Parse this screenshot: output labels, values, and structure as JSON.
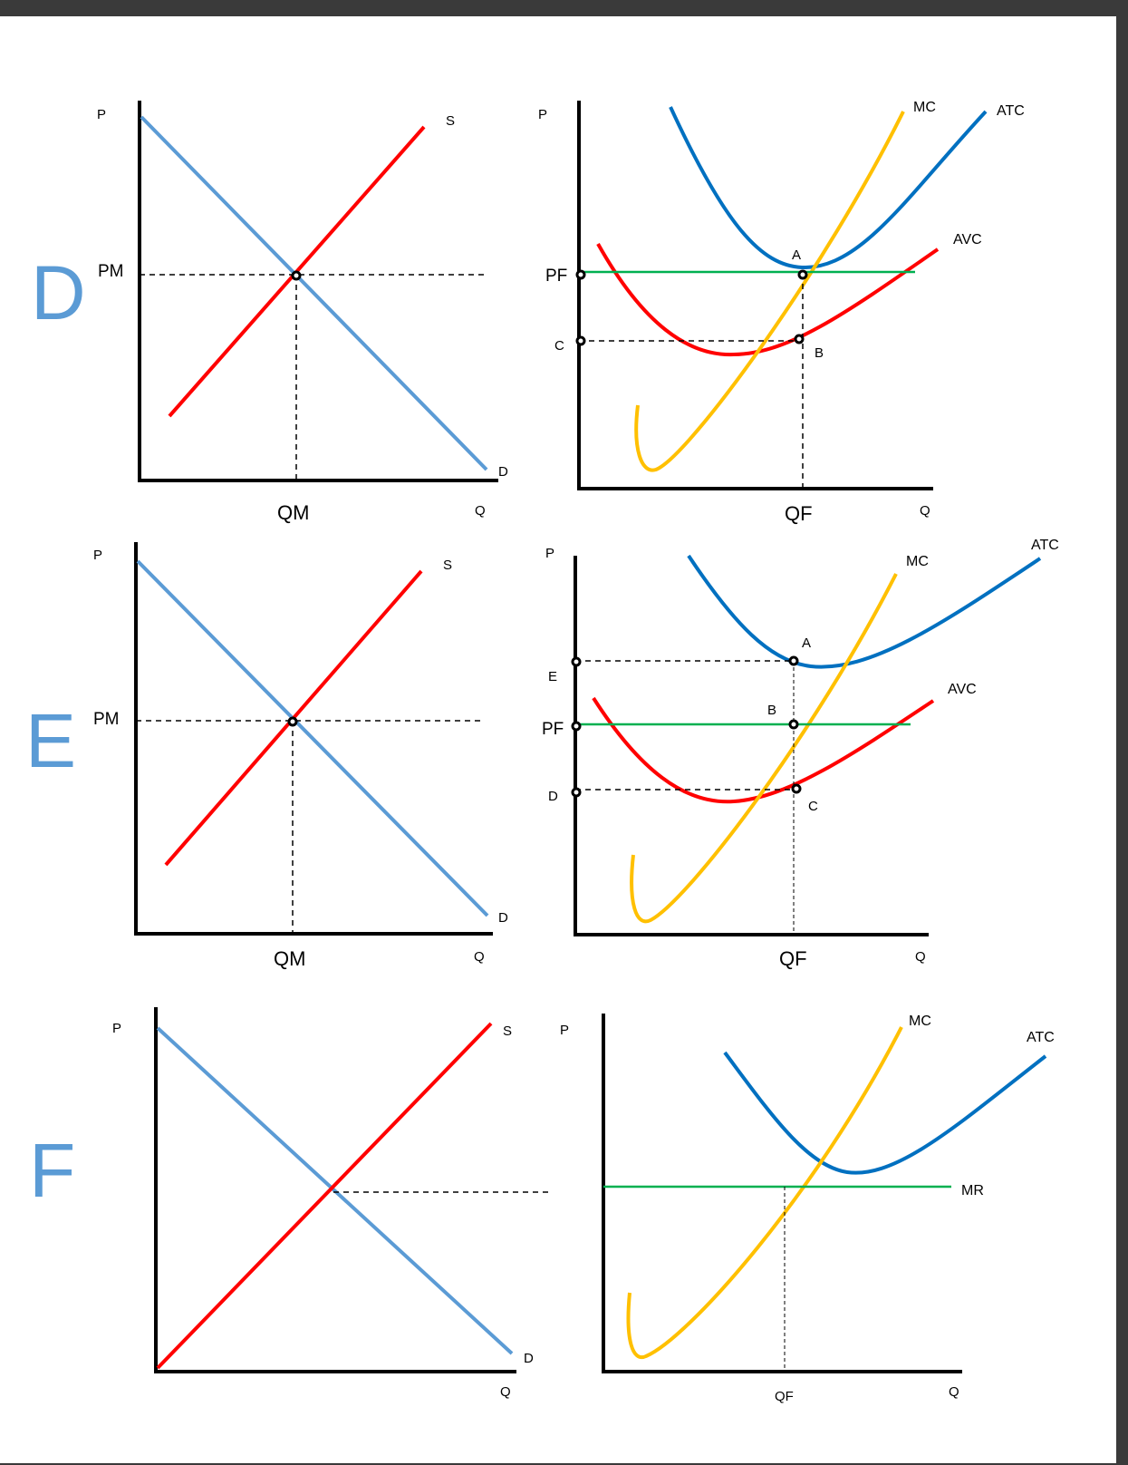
{
  "colors": {
    "demand": "#5b9bd5",
    "supply": "#ff0000",
    "mc": "#ffc000",
    "atc": "#0070c0",
    "avc": "#ff0000",
    "price_line": "#00b050",
    "section_letter": "#5b9bd5",
    "axis": "#000000"
  },
  "panels": [
    {
      "letter": "D",
      "market": {
        "p_axis": "P",
        "q_axis": "Q",
        "supply": "S",
        "demand": "D",
        "price": "PM",
        "quantity": "QM"
      },
      "firm": {
        "p_axis": "P",
        "q_axis": "Q",
        "mc": "MC",
        "atc": "ATC",
        "avc": "AVC",
        "price": "PF",
        "cost": "C",
        "quantity": "QF",
        "point_a": "A",
        "point_b": "B"
      }
    },
    {
      "letter": "E",
      "market": {
        "p_axis": "P",
        "q_axis": "Q",
        "supply": "S",
        "demand": "D",
        "price": "PM",
        "quantity": "QM"
      },
      "firm": {
        "p_axis": "P",
        "q_axis": "Q",
        "mc": "MC",
        "atc": "ATC",
        "avc": "AVC",
        "price": "PF",
        "level_e": "E",
        "level_d": "D",
        "quantity": "QF",
        "point_a": "A",
        "point_b": "B",
        "point_c": "C"
      }
    },
    {
      "letter": "F",
      "market": {
        "p_axis": "P",
        "q_axis": "Q",
        "supply": "S",
        "demand": "D"
      },
      "firm": {
        "p_axis": "P",
        "q_axis": "Q",
        "mc": "MC",
        "atc": "ATC",
        "mr": "MR",
        "quantity": "QF"
      }
    }
  ]
}
